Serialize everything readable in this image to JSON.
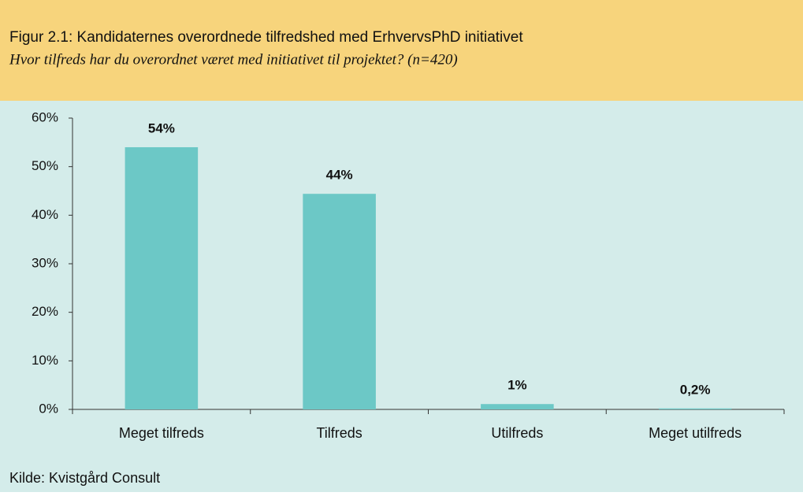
{
  "chart_data": {
    "type": "bar",
    "title": "Figur 2.1: Kandidaternes overordnede tilfredshed med ErhvervsPhD initiativet",
    "subtitle": "Hvor tilfreds har du overordnet været med initiativet til projektet? (n=420)",
    "source": "Kilde: Kvistgård Consult",
    "categories": [
      "Meget tilfreds",
      "Tilfreds",
      "Utilfreds",
      "Meget utilfreds"
    ],
    "values": [
      54,
      44.4,
      1.1,
      0.2
    ],
    "value_labels": [
      "54%",
      "44%",
      "1%",
      "0,2%"
    ],
    "color": "#6cc8c6",
    "ylim": [
      0,
      60
    ],
    "yticks": [
      {
        "value": 0,
        "label": "0%"
      },
      {
        "value": 10,
        "label": "10%"
      },
      {
        "value": 20,
        "label": "20%"
      },
      {
        "value": 30,
        "label": "30%"
      },
      {
        "value": 40,
        "label": "40%"
      },
      {
        "value": 50,
        "label": "50%"
      },
      {
        "value": 60,
        "label": "60%"
      }
    ]
  }
}
